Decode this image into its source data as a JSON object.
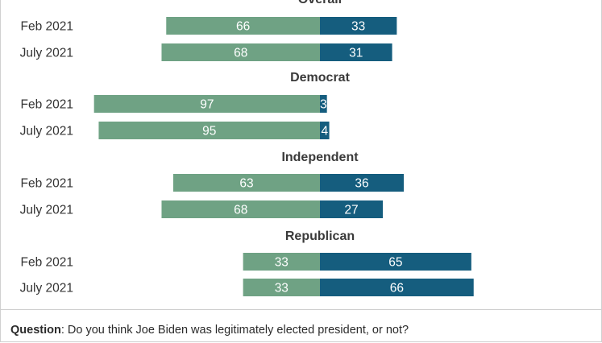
{
  "chart_data": {
    "type": "bar",
    "orientation": "horizontal-diverging",
    "colors": {
      "left": "#6fa284",
      "right": "#155d7e"
    },
    "groups": [
      {
        "title": "Overall",
        "rows": [
          {
            "label": "Feb 2021",
            "left": 66,
            "right": 33
          },
          {
            "label": "July 2021",
            "left": 68,
            "right": 31
          }
        ]
      },
      {
        "title": "Democrat",
        "rows": [
          {
            "label": "Feb 2021",
            "left": 97,
            "right": 3
          },
          {
            "label": "July 2021",
            "left": 95,
            "right": 4
          }
        ]
      },
      {
        "title": "Independent",
        "rows": [
          {
            "label": "Feb 2021",
            "left": 63,
            "right": 36
          },
          {
            "label": "July 2021",
            "left": 68,
            "right": 27
          }
        ]
      },
      {
        "title": "Republican",
        "rows": [
          {
            "label": "Feb 2021",
            "left": 33,
            "right": 65
          },
          {
            "label": "July 2021",
            "left": 33,
            "right": 66
          }
        ]
      }
    ]
  },
  "footer": {
    "question_label": "Question",
    "question_text": ": Do you think Joe Biden was legitimately elected president, or not?"
  }
}
